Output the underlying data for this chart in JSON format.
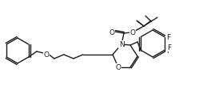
{
  "bg": "#ffffff",
  "lc": "#1c1c1c",
  "lw": 1.0,
  "fs": 6.0,
  "fig_w": 2.59,
  "fig_h": 1.16,
  "dpi": 100,
  "xlim": [
    0,
    259
  ],
  "ylim": [
    0,
    116
  ]
}
